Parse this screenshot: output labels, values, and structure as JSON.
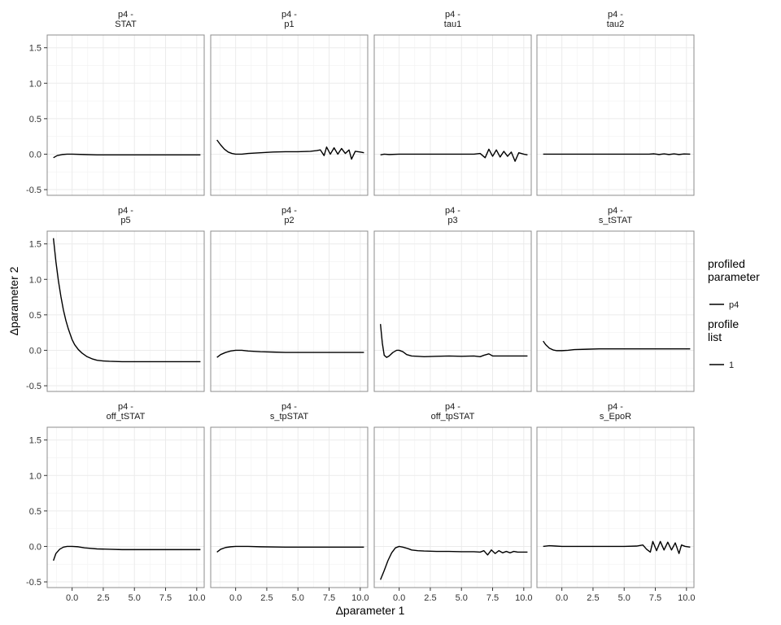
{
  "chart_data": {
    "type": "line",
    "layout": "facet-grid-3x4",
    "xlabel": "Δparameter 1",
    "ylabel": "Δparameter 2",
    "xlim": [
      -2.0,
      10.6
    ],
    "ylim": [
      -0.58,
      1.68
    ],
    "xticks": [
      0.0,
      2.5,
      5.0,
      7.5,
      10.0
    ],
    "xtick_labels": [
      "0.0",
      "2.5",
      "5.0",
      "7.5",
      "10.0"
    ],
    "yticks": [
      -0.5,
      0.0,
      0.5,
      1.0,
      1.5
    ],
    "ytick_labels": [
      "-0.5",
      "0.0",
      "0.5",
      "1.0",
      "1.5"
    ],
    "grid": true,
    "legend": {
      "placement": "right",
      "groups": [
        {
          "title_lines": [
            "profiled",
            "parameter"
          ],
          "entries": [
            "p4"
          ]
        },
        {
          "title_lines": [
            "profile",
            "list"
          ],
          "entries": [
            "1"
          ]
        }
      ]
    },
    "panels": [
      {
        "strip": [
          "p4 -",
          "STAT"
        ],
        "x": [
          -1.5,
          -1.2,
          -0.8,
          -0.4,
          0,
          1,
          2,
          4,
          6,
          8,
          10.3
        ],
        "y": [
          -0.05,
          -0.02,
          -0.005,
          0,
          0,
          -0.005,
          -0.01,
          -0.01,
          -0.01,
          -0.01,
          -0.01
        ]
      },
      {
        "strip": [
          "p4 -",
          "p1"
        ],
        "x": [
          -1.5,
          -1.2,
          -0.9,
          -0.6,
          -0.3,
          0,
          0.5,
          1,
          2,
          3,
          4,
          5,
          6,
          6.5,
          6.8,
          7.1,
          7.3,
          7.6,
          7.9,
          8.2,
          8.5,
          8.8,
          9.1,
          9.3,
          9.6,
          10.0,
          10.3
        ],
        "y": [
          0.2,
          0.13,
          0.07,
          0.03,
          0.01,
          0,
          0,
          0.01,
          0.02,
          0.03,
          0.035,
          0.035,
          0.04,
          0.05,
          0.06,
          -0.02,
          0.1,
          0,
          0.09,
          0,
          0.08,
          0.01,
          0.06,
          -0.07,
          0.04,
          0.03,
          0.02
        ]
      },
      {
        "strip": [
          "p4 -",
          "tau1"
        ],
        "x": [
          -1.5,
          -1.2,
          -0.8,
          0,
          1,
          2,
          3,
          4,
          5,
          6,
          6.5,
          6.9,
          7.2,
          7.5,
          7.8,
          8.1,
          8.4,
          8.7,
          9.0,
          9.3,
          9.6,
          10.0,
          10.3
        ],
        "y": [
          -0.01,
          0,
          -0.005,
          0,
          0,
          0,
          0,
          0,
          0,
          0,
          0.01,
          -0.05,
          0.07,
          -0.03,
          0.06,
          -0.04,
          0.04,
          -0.03,
          0.03,
          -0.1,
          0.02,
          0,
          -0.01
        ]
      },
      {
        "strip": [
          "p4 -",
          "tau2"
        ],
        "x": [
          -1.5,
          0,
          2,
          4,
          6,
          7,
          7.4,
          7.8,
          8.2,
          8.6,
          9,
          9.4,
          9.8,
          10.3
        ],
        "y": [
          0,
          0,
          0,
          0,
          0,
          0,
          0.005,
          -0.005,
          0.005,
          -0.005,
          0.005,
          -0.005,
          0.003,
          0
        ]
      },
      {
        "strip": [
          "p4 -",
          "p5"
        ],
        "x": [
          -1.5,
          -1.3,
          -1.1,
          -0.9,
          -0.7,
          -0.5,
          -0.3,
          -0.1,
          0,
          0.2,
          0.5,
          0.8,
          1.2,
          1.6,
          2,
          2.5,
          3,
          4,
          5,
          6,
          8,
          10.3
        ],
        "y": [
          1.58,
          1.25,
          0.98,
          0.76,
          0.57,
          0.42,
          0.3,
          0.2,
          0.15,
          0.08,
          0.01,
          -0.04,
          -0.09,
          -0.12,
          -0.14,
          -0.15,
          -0.155,
          -0.16,
          -0.16,
          -0.16,
          -0.16,
          -0.16
        ]
      },
      {
        "strip": [
          "p4 -",
          "p2"
        ],
        "x": [
          -1.5,
          -1.2,
          -0.8,
          -0.4,
          0,
          0.5,
          1,
          2,
          3,
          4,
          6,
          8,
          10.3
        ],
        "y": [
          -0.1,
          -0.06,
          -0.03,
          -0.01,
          0,
          0,
          -0.01,
          -0.02,
          -0.025,
          -0.03,
          -0.03,
          -0.03,
          -0.03
        ]
      },
      {
        "strip": [
          "p4 -",
          "p3"
        ],
        "x": [
          -1.5,
          -1.35,
          -1.2,
          -1.0,
          -0.8,
          -0.5,
          -0.2,
          0,
          0.3,
          0.6,
          1,
          1.5,
          2,
          3,
          4,
          5,
          6,
          6.5,
          6.8,
          7.2,
          7.5,
          8,
          9,
          10.3
        ],
        "y": [
          0.37,
          0.1,
          -0.07,
          -0.1,
          -0.08,
          -0.03,
          0,
          0,
          -0.02,
          -0.06,
          -0.08,
          -0.085,
          -0.09,
          -0.085,
          -0.08,
          -0.085,
          -0.08,
          -0.09,
          -0.07,
          -0.05,
          -0.08,
          -0.08,
          -0.08,
          -0.08
        ]
      },
      {
        "strip": [
          "p4 -",
          "s_tSTAT"
        ],
        "x": [
          -1.5,
          -1.3,
          -1.0,
          -0.7,
          -0.4,
          0,
          0.5,
          1,
          2,
          3,
          4,
          6,
          8,
          10.3
        ],
        "y": [
          0.13,
          0.08,
          0.03,
          0.005,
          -0.005,
          -0.005,
          0,
          0.01,
          0.015,
          0.02,
          0.02,
          0.02,
          0.02,
          0.02
        ]
      },
      {
        "strip": [
          "p4 -",
          "off_tSTAT"
        ],
        "x": [
          -1.5,
          -1.3,
          -1.0,
          -0.7,
          -0.4,
          0,
          0.5,
          1,
          2,
          3,
          4,
          6,
          8,
          10.3
        ],
        "y": [
          -0.2,
          -0.1,
          -0.04,
          -0.01,
          0,
          0,
          -0.005,
          -0.02,
          -0.035,
          -0.04,
          -0.045,
          -0.045,
          -0.045,
          -0.045
        ]
      },
      {
        "strip": [
          "p4 -",
          "s_tpSTAT"
        ],
        "x": [
          -1.5,
          -1.2,
          -0.8,
          -0.4,
          0,
          1,
          2,
          4,
          6,
          8,
          10.3
        ],
        "y": [
          -0.08,
          -0.04,
          -0.015,
          -0.005,
          0,
          0,
          -0.005,
          -0.01,
          -0.01,
          -0.01,
          -0.01
        ]
      },
      {
        "strip": [
          "p4 -",
          "off_tpSTAT"
        ],
        "x": [
          -1.5,
          -1.2,
          -0.9,
          -0.6,
          -0.3,
          0,
          0.3,
          0.7,
          1,
          1.5,
          2,
          3,
          4,
          5,
          6,
          6.5,
          6.8,
          7.1,
          7.4,
          7.7,
          8,
          8.3,
          8.6,
          8.9,
          9.2,
          9.5,
          10.0,
          10.3
        ],
        "y": [
          -0.47,
          -0.34,
          -0.2,
          -0.09,
          -0.02,
          0,
          -0.01,
          -0.03,
          -0.05,
          -0.06,
          -0.065,
          -0.07,
          -0.07,
          -0.075,
          -0.075,
          -0.08,
          -0.06,
          -0.12,
          -0.05,
          -0.1,
          -0.06,
          -0.09,
          -0.07,
          -0.09,
          -0.07,
          -0.08,
          -0.08,
          -0.08
        ]
      },
      {
        "strip": [
          "p4 -",
          "s_EpoR"
        ],
        "x": [
          -1.5,
          -1.0,
          -0.5,
          0,
          1,
          2,
          3,
          4,
          5,
          6,
          6.5,
          6.8,
          7.1,
          7.3,
          7.6,
          7.9,
          8.2,
          8.5,
          8.8,
          9.1,
          9.4,
          9.6,
          9.9,
          10.3
        ],
        "y": [
          0,
          0.01,
          0.005,
          0,
          0,
          0,
          0,
          0,
          0,
          0.005,
          0.02,
          -0.04,
          -0.08,
          0.07,
          -0.06,
          0.07,
          -0.05,
          0.06,
          -0.05,
          0.05,
          -0.1,
          0.02,
          0,
          -0.01
        ]
      }
    ]
  }
}
